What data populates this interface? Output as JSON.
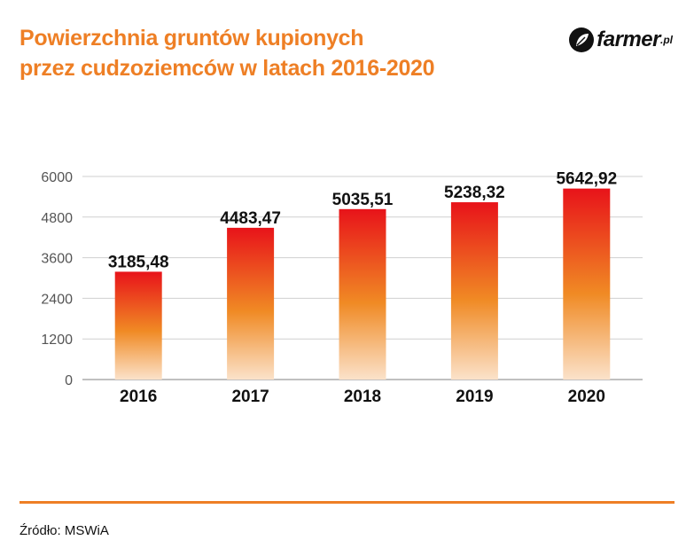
{
  "title_line1": "Powierzchnia gruntów kupionych",
  "title_line2": "przez cudzoziemców w latach 2016-2020",
  "logo": {
    "name": "farmer",
    "suffix": ".pl"
  },
  "source": "Źródło: MSWiA",
  "colors": {
    "accent": "#EE7F25",
    "bar_top": "#E8131A",
    "bar_mid": "#F08A24",
    "bar_bottom": "#FBE2CA"
  },
  "chart_data": {
    "type": "bar",
    "categories": [
      "2016",
      "2017",
      "2018",
      "2019",
      "2020"
    ],
    "values": [
      3185.48,
      4483.47,
      5035.51,
      5238.32,
      5642.92
    ],
    "value_labels": [
      "3185,48",
      "4483,47",
      "5035,51",
      "5238,32",
      "5642,92"
    ],
    "yticks": [
      0,
      1200,
      2400,
      3600,
      4800,
      6000
    ],
    "ylim": [
      0,
      6000
    ],
    "grid": true
  }
}
